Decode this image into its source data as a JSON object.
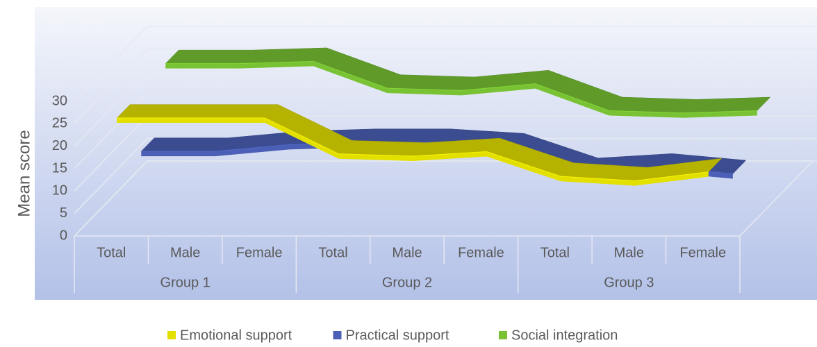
{
  "chart_data": {
    "type": "line",
    "y_label": "Mean score",
    "categories": [
      "Total",
      "Male",
      "Female",
      "Total",
      "Male",
      "Female",
      "Total",
      "Male",
      "Female"
    ],
    "groups": [
      {
        "name": "Group 1",
        "size": 3
      },
      {
        "name": "Group 2",
        "size": 3
      },
      {
        "name": "Group 3",
        "size": 3
      }
    ],
    "ylim": [
      0,
      30
    ],
    "yticks": [
      0,
      5,
      10,
      15,
      20,
      25,
      30
    ],
    "grid": true,
    "legend": "bottom",
    "series": [
      {
        "name": "Emotional support",
        "color": "#e3e000",
        "values": [
          25,
          25,
          25,
          17,
          16.5,
          17.5,
          12,
          11,
          13
        ]
      },
      {
        "name": "Practical support",
        "color": "#4a5fb5",
        "values": [
          12,
          12,
          13.5,
          14,
          14,
          13,
          7.5,
          8.5,
          7
        ]
      },
      {
        "name": "Social integration",
        "color": "#78c234",
        "values": [
          26,
          26,
          26.5,
          20.5,
          20,
          21.5,
          15.5,
          15,
          15.5
        ]
      }
    ]
  }
}
